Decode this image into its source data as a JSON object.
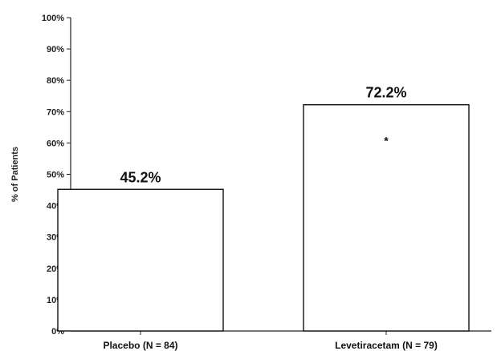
{
  "chart_data": {
    "type": "bar",
    "categories": [
      "Placebo (N = 84)",
      "Levetiracetam (N = 79)"
    ],
    "values": [
      45.2,
      72.2
    ],
    "data_labels": [
      "45.2%",
      "72.2%"
    ],
    "title": "",
    "xlabel": "",
    "ylabel": "% of Patients",
    "ylim": [
      0,
      100
    ],
    "yticks": [
      0,
      10,
      20,
      30,
      40,
      50,
      60,
      70,
      80,
      90,
      100
    ],
    "ytick_labels": [
      "0%",
      "10%",
      "20%",
      "30%",
      "40%",
      "50%",
      "60%",
      "70%",
      "80%",
      "90%",
      "100%"
    ],
    "annotations": [
      {
        "category": "Levetiracetam (N = 79)",
        "text": "*"
      }
    ],
    "grid": false,
    "bar_fill": "#ffffff",
    "bar_stroke": "#111111"
  }
}
